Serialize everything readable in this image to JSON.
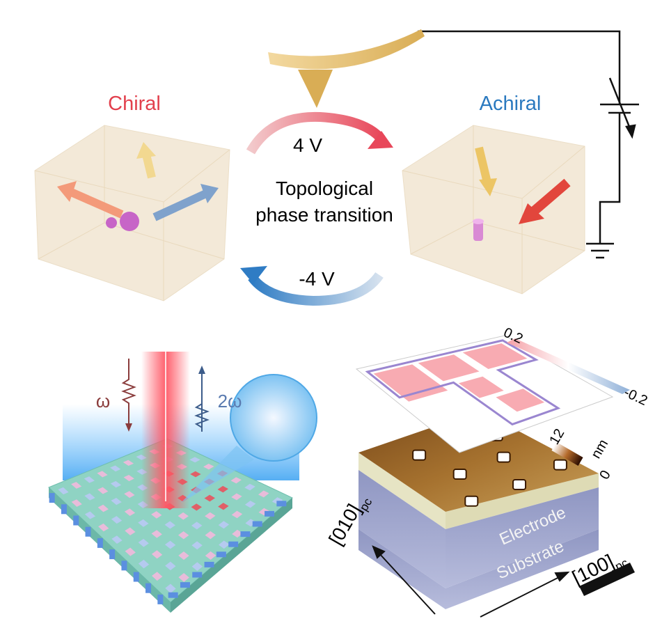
{
  "top": {
    "left_label": "Chiral",
    "right_label": "Achiral",
    "forward_voltage": "4 V",
    "reverse_voltage": "-4 V",
    "transition_label": [
      "Topological",
      "phase transition"
    ]
  },
  "bottom": {
    "omega": "ω",
    "two_omega": "2ω",
    "colorbar_max": "0.2",
    "colorbar_min": "-0.2",
    "height_max": "12",
    "height_unit": "nm",
    "height_min": "0",
    "axis_y": "[010]",
    "axis_x": "[100]",
    "axis_subscript": "pc",
    "layers": [
      "Electrode",
      "Substrate"
    ]
  }
}
